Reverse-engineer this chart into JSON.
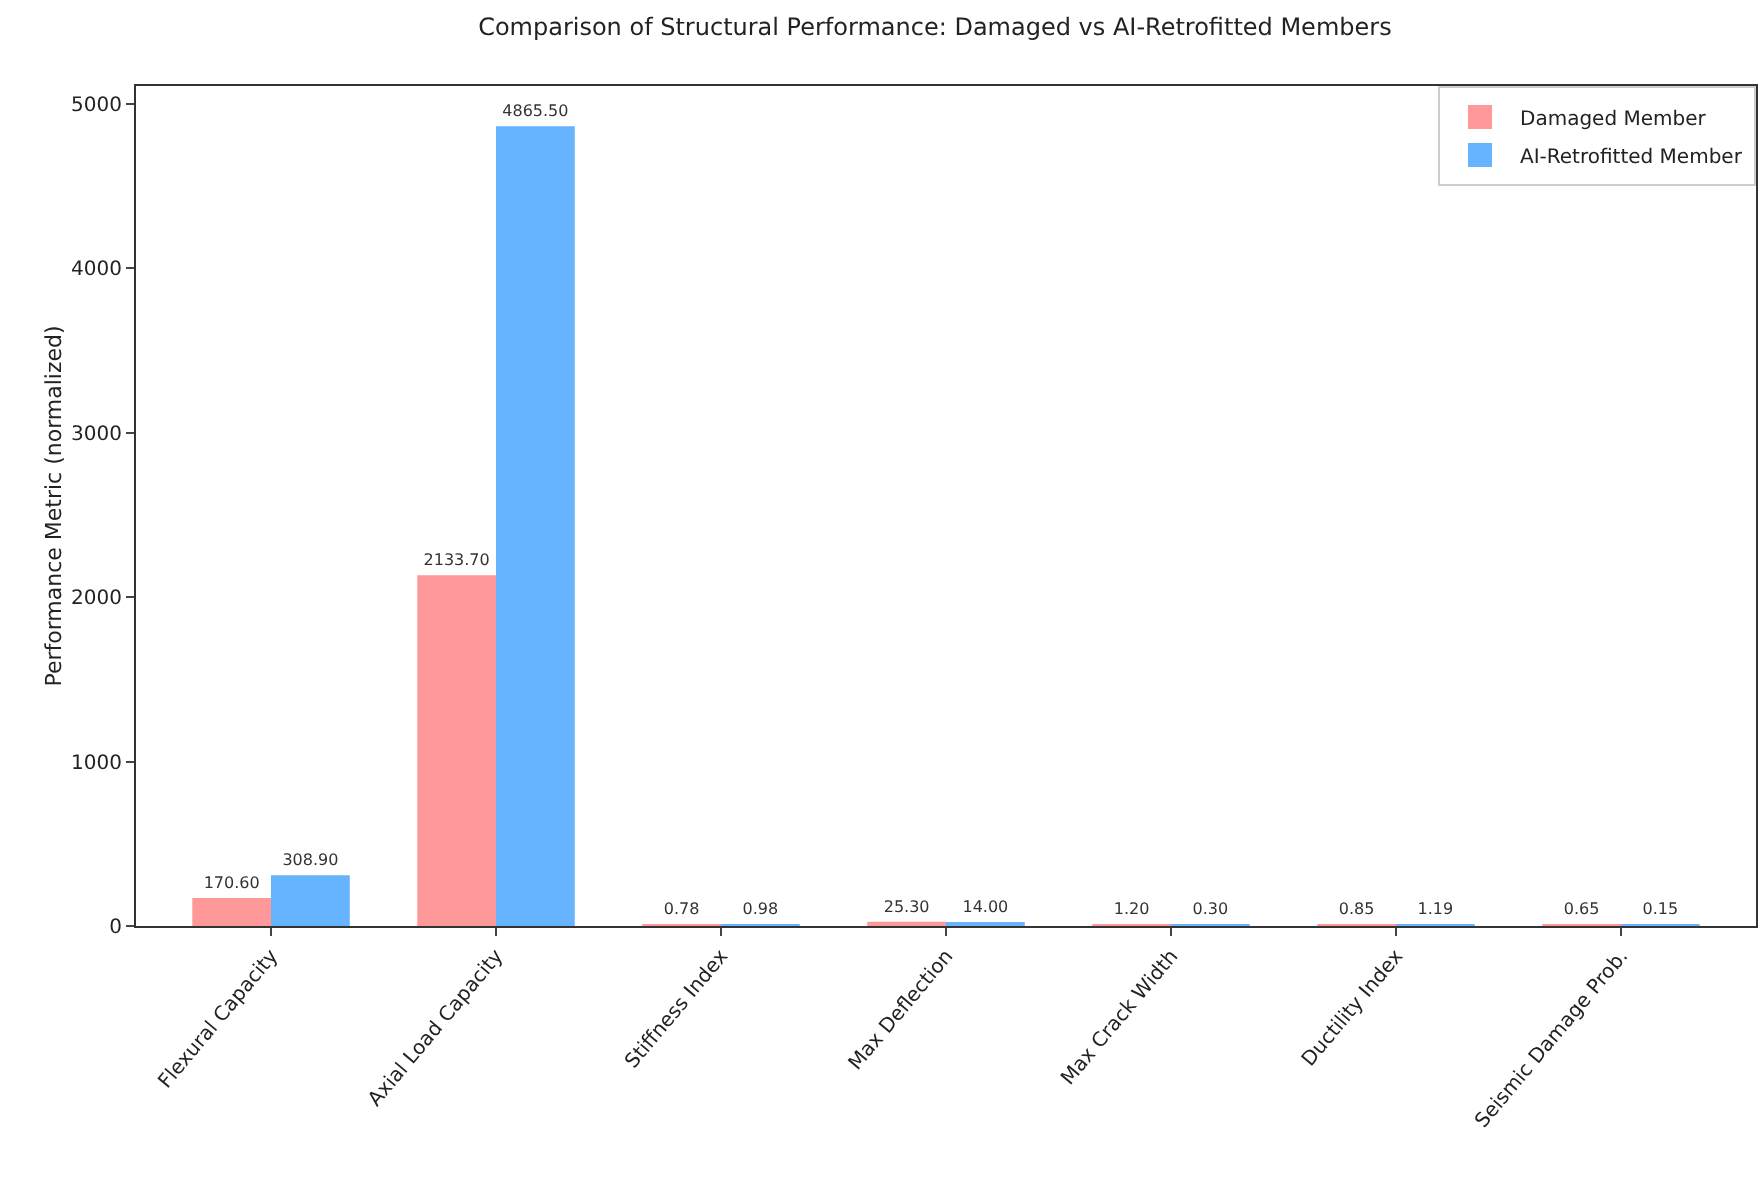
{
  "chart_data": {
    "type": "bar",
    "title": "Comparison of Structural Performance: Damaged vs AI-Retrofitted Members",
    "ylabel": "Performance Metric (normalized)",
    "categories": [
      "Flexural Capacity",
      "Axial Load Capacity",
      "Stiffness Index",
      "Max Deflection",
      "Max Crack Width",
      "Ductility Index",
      "Seismic Damage Prob."
    ],
    "series": [
      {
        "name": "Damaged Member",
        "color": "#ff9999",
        "values": [
          170.6,
          2133.7,
          0.78,
          25.3,
          1.2,
          0.85,
          0.65
        ],
        "value_labels": [
          "170.60",
          "2133.70",
          "0.78",
          "25.30",
          "1.20",
          "0.85",
          "0.65"
        ]
      },
      {
        "name": "AI-Retrofitted Member",
        "color": "#66b3ff",
        "values": [
          308.9,
          4865.5,
          0.98,
          14,
          0.3,
          1.19,
          0.15
        ],
        "value_labels": [
          "308.90",
          "4865.50",
          "0.98",
          "14.00",
          "0.30",
          "1.19",
          "0.15"
        ]
      }
    ],
    "ylim": [
      0,
      5110
    ],
    "yticks": [
      0,
      1000,
      2000,
      3000,
      4000,
      5000
    ],
    "grid": false,
    "legend": "top right"
  }
}
